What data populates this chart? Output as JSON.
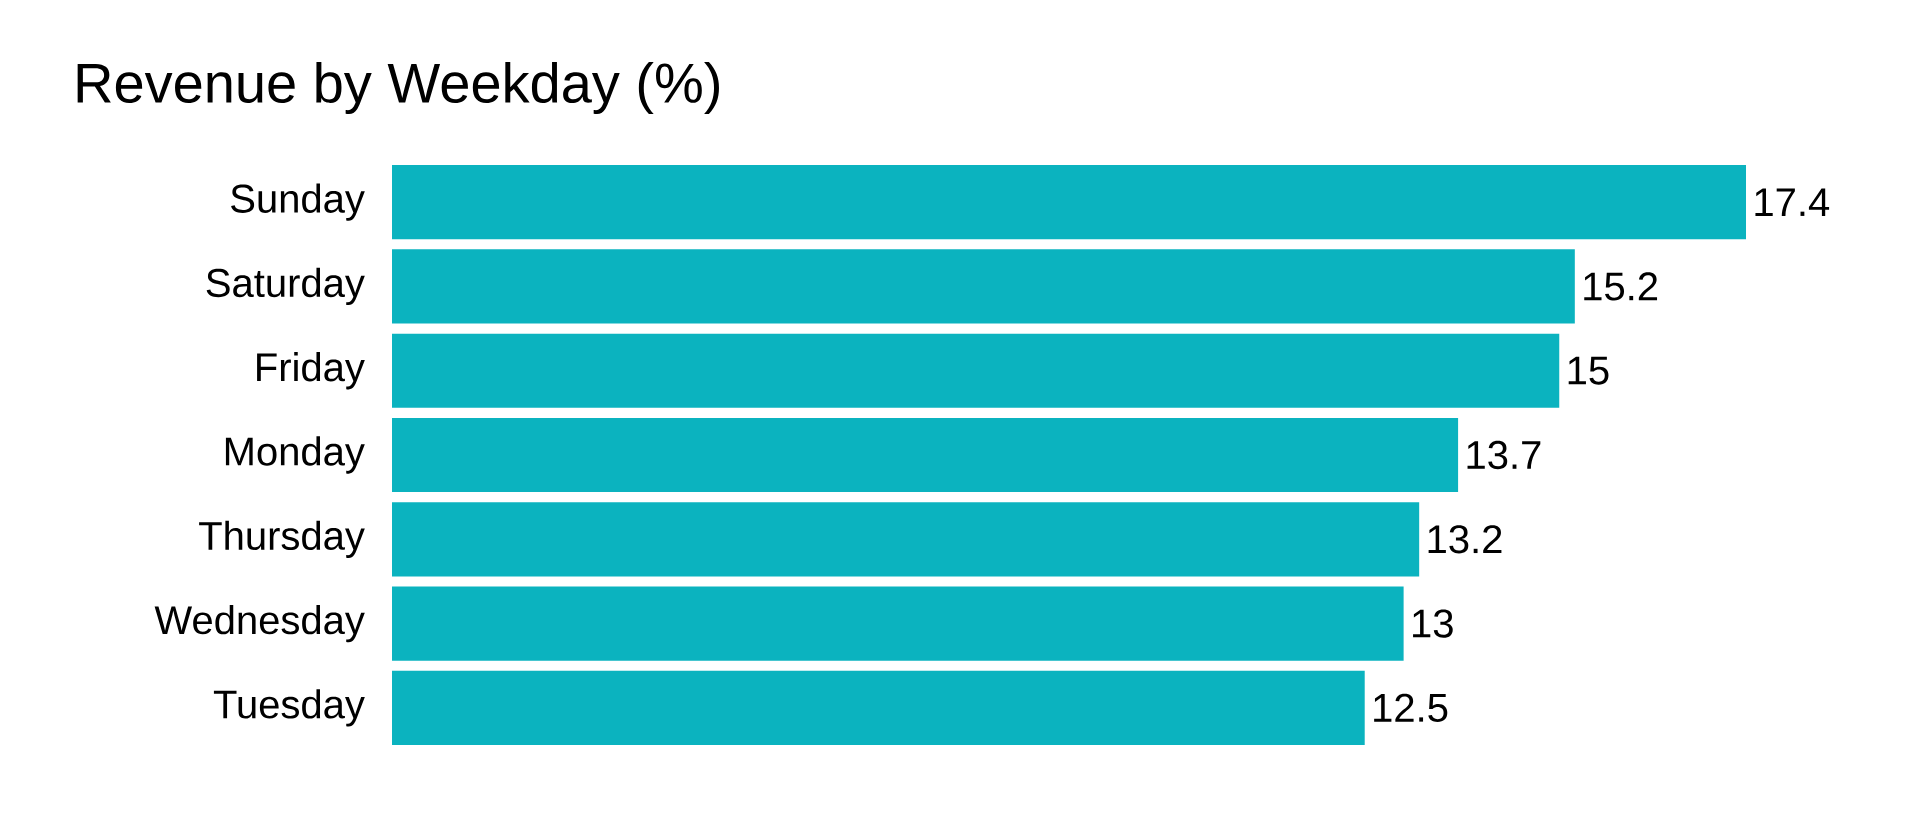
{
  "chart_data": {
    "type": "bar",
    "orientation": "horizontal",
    "title": "Revenue by Weekday (%)",
    "categories": [
      "Sunday",
      "Saturday",
      "Friday",
      "Monday",
      "Thursday",
      "Wednesday",
      "Tuesday"
    ],
    "values": [
      17.4,
      15.2,
      15,
      13.7,
      13.2,
      13,
      12.5
    ],
    "color": "#0bb3bf",
    "xlim": [
      0,
      17.4
    ],
    "data_labels": true
  }
}
